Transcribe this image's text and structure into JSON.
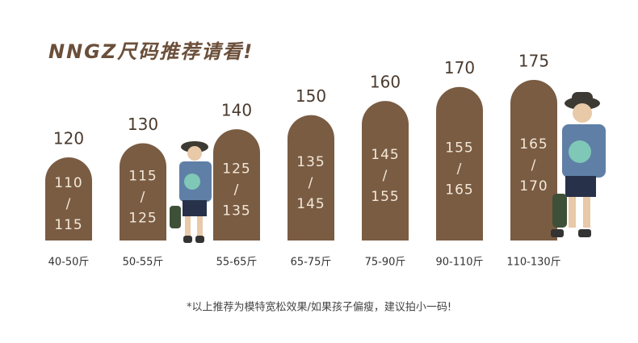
{
  "title": "NNGZ尺码推荐请看!",
  "separator": "/",
  "columns": [
    {
      "size": 120,
      "fit": [
        110,
        115
      ],
      "weight": "40-50斤"
    },
    {
      "size": 130,
      "fit": [
        115,
        125
      ],
      "weight": "50-55斤"
    },
    {
      "size": 140,
      "fit": [
        125,
        135
      ],
      "weight": "55-65斤"
    },
    {
      "size": 150,
      "fit": [
        135,
        145
      ],
      "weight": "65-75斤"
    },
    {
      "size": 160,
      "fit": [
        145,
        155
      ],
      "weight": "75-90斤"
    },
    {
      "size": 170,
      "fit": [
        155,
        165
      ],
      "weight": "90-110斤"
    },
    {
      "size": 175,
      "fit": [
        165,
        170
      ],
      "weight": "110-130斤"
    }
  ],
  "note": "*以上推荐为模特宽松效果/如果孩子偏瘦，建议拍小一码!"
}
